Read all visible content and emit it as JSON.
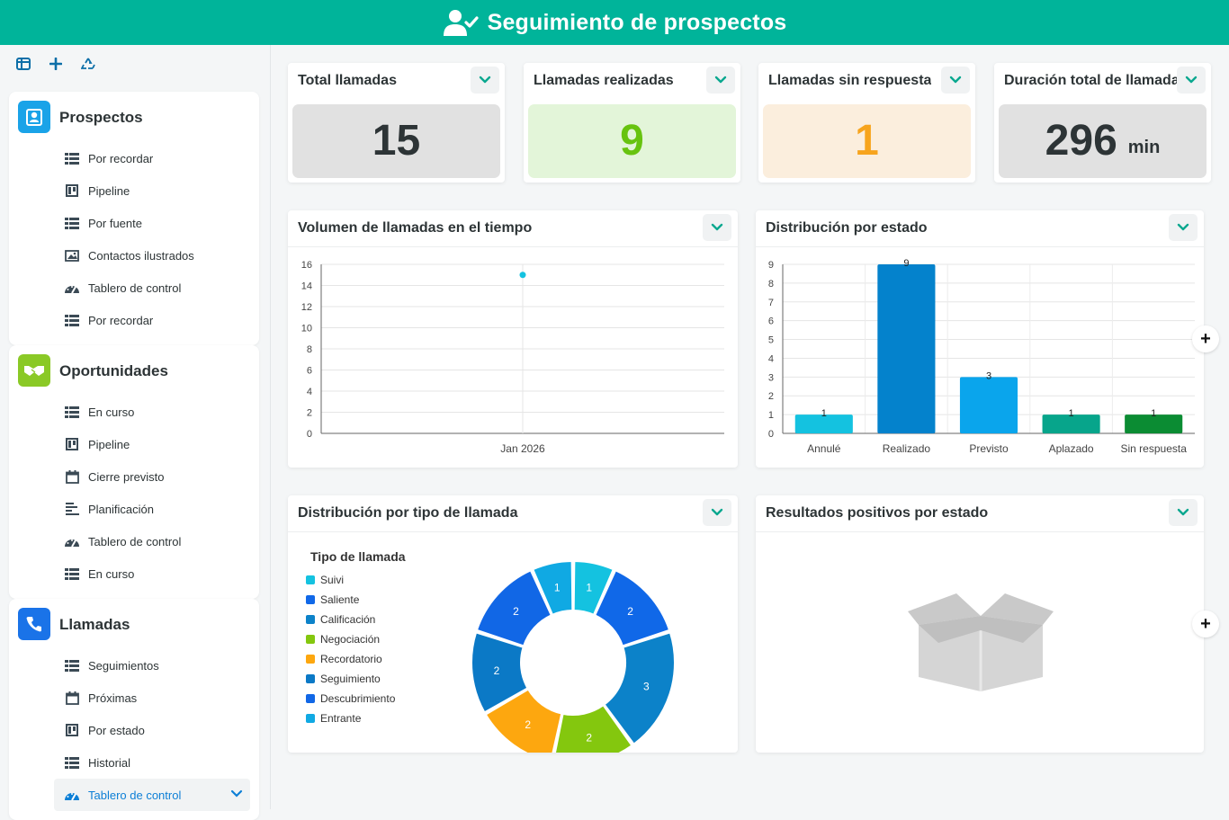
{
  "header": {
    "title": "Seguimiento de prospectos",
    "icon": "user-check-icon"
  },
  "toolbar": {
    "icons": [
      "layout-icon",
      "plus-icon",
      "recycle-icon"
    ]
  },
  "sidebar": {
    "groups": [
      {
        "title": "Prospectos",
        "color": "#1aa3e8",
        "icon": "user-badge-icon",
        "items": [
          {
            "label": "Por recordar",
            "icon": "list-icon"
          },
          {
            "label": "Pipeline",
            "icon": "kanban-icon"
          },
          {
            "label": "Por fuente",
            "icon": "list-icon"
          },
          {
            "label": "Contactos ilustrados",
            "icon": "image-icon"
          },
          {
            "label": "Tablero de control",
            "icon": "gauge-icon"
          },
          {
            "label": "Por recordar",
            "icon": "list-icon"
          }
        ]
      },
      {
        "title": "Oportunidades",
        "color": "#8ac926",
        "icon": "handshake-icon",
        "items": [
          {
            "label": "En curso",
            "icon": "list-icon"
          },
          {
            "label": "Pipeline",
            "icon": "kanban-icon"
          },
          {
            "label": "Cierre previsto",
            "icon": "calendar-icon"
          },
          {
            "label": "Planificación",
            "icon": "gantt-icon"
          },
          {
            "label": "Tablero de control",
            "icon": "gauge-icon"
          },
          {
            "label": "En curso",
            "icon": "list-icon"
          }
        ]
      },
      {
        "title": "Llamadas",
        "color": "#1a73e8",
        "icon": "phone-icon",
        "items": [
          {
            "label": "Seguimientos",
            "icon": "list-icon"
          },
          {
            "label": "Próximas",
            "icon": "calendar-icon"
          },
          {
            "label": "Por estado",
            "icon": "kanban-icon"
          },
          {
            "label": "Historial",
            "icon": "list-icon"
          },
          {
            "label": "Tablero de control",
            "icon": "gauge-icon",
            "active": true
          }
        ]
      }
    ]
  },
  "kpis": [
    {
      "title": "Total llamadas",
      "value": "15",
      "unit": "",
      "bg": "#e1e1e1",
      "color": "#2d3436"
    },
    {
      "title": "Llamadas realizadas",
      "value": "9",
      "unit": "",
      "bg": "#e3f5d9",
      "color": "#67c30f"
    },
    {
      "title": "Llamadas sin respuesta",
      "value": "1",
      "unit": "",
      "bg": "#fbeedd",
      "color": "#f7a41d"
    },
    {
      "title": "Duración total de llamada",
      "value": "296",
      "unit": "min",
      "bg": "#e1e1e1",
      "color": "#2d3436"
    }
  ],
  "cards": {
    "volume": "Volumen de llamadas en el tiempo",
    "status": "Distribución por estado",
    "type": "Distribución por tipo de llamada",
    "positive": "Resultados positivos por estado",
    "empty_icon": "empty-box-icon"
  },
  "chart_data": [
    {
      "type": "scatter",
      "title": "Volumen de llamadas en el tiempo",
      "categories": [
        "Jan 2026"
      ],
      "values": [
        15
      ],
      "ylim": [
        0,
        16
      ],
      "yticks": [
        0,
        2,
        4,
        6,
        8,
        10,
        12,
        14,
        16
      ],
      "color": "#14c2e0",
      "grid": true
    },
    {
      "type": "bar",
      "title": "Distribución por estado",
      "categories": [
        "Annulé",
        "Realizado",
        "Previsto",
        "Aplazado",
        "Sin respuesta"
      ],
      "values": [
        1,
        9,
        3,
        1,
        1
      ],
      "colors": [
        "#14c2e0",
        "#0482cc",
        "#0aa5ec",
        "#07a58b",
        "#0b8c33"
      ],
      "ylim": [
        0,
        9
      ],
      "yticks": [
        0,
        1,
        2,
        3,
        4,
        5,
        6,
        7,
        8,
        9
      ],
      "grid": true
    },
    {
      "type": "pie",
      "title": "Distribución por tipo de llamada",
      "legend_title": "Tipo de llamada",
      "legend_position": "left",
      "series": [
        {
          "name": "Suivi",
          "value": 1,
          "color": "#14c2e0"
        },
        {
          "name": "Saliente",
          "value": 2,
          "color": "#1068e8"
        },
        {
          "name": "Calificación",
          "value": 3,
          "color": "#0c82c9"
        },
        {
          "name": "Negociación",
          "value": 2,
          "color": "#84c70e"
        },
        {
          "name": "Recordatorio",
          "value": 2,
          "color": "#fda70f"
        },
        {
          "name": "Seguimiento",
          "value": 2,
          "color": "#0b79c6"
        },
        {
          "name": "Descubrimiento",
          "value": 2,
          "color": "#1167e6"
        },
        {
          "name": "Entrante",
          "value": 1,
          "color": "#10a9e3"
        }
      ]
    }
  ]
}
